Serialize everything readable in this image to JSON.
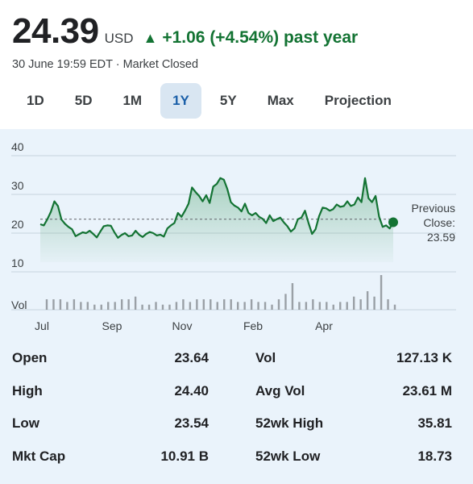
{
  "quote": {
    "price": "24.39",
    "currency": "USD",
    "change_arrow": "▲",
    "change_text": "+1.06 (+4.54%) past year",
    "timestamp": "30 June 19:59 EDT · Market Closed",
    "accent_color": "#137333"
  },
  "tabs": [
    {
      "label": "1D",
      "active": false
    },
    {
      "label": "5D",
      "active": false
    },
    {
      "label": "1M",
      "active": false
    },
    {
      "label": "1Y",
      "active": true
    },
    {
      "label": "5Y",
      "active": false
    },
    {
      "label": "Max",
      "active": false
    },
    {
      "label": "Projection",
      "active": false
    }
  ],
  "chart_data": {
    "type": "area",
    "y_ticks": [
      "40",
      "30",
      "20",
      "10"
    ],
    "ylim": [
      10,
      40
    ],
    "x_tick_labels": [
      "Jul",
      "Sep",
      "Nov",
      "Feb",
      "Apr"
    ],
    "volume_label": "Vol",
    "previous_close": {
      "label_line1": "Previous",
      "label_line2": "Close:",
      "value": "23.59",
      "value_num": 23.59
    },
    "series": [
      {
        "values": [
          22.3,
          22.0,
          23.6,
          25.5,
          28.2,
          27.0,
          23.5,
          22.4,
          21.6,
          21.0,
          19.2,
          19.7,
          20.2,
          20.0,
          20.6,
          19.8,
          18.9,
          20.4,
          21.8,
          22.0,
          21.9,
          20.2,
          18.8,
          19.5,
          20.0,
          19.2,
          19.4,
          20.6,
          19.6,
          19.0,
          19.8,
          20.3,
          20.0,
          19.4,
          19.6,
          19.1,
          21.2,
          22.0,
          22.6,
          25.2,
          24.2,
          25.8,
          27.6,
          31.8,
          30.6,
          29.6,
          28.2,
          29.8,
          27.8,
          32.0,
          32.7,
          34.2,
          33.8,
          31.4,
          28.0,
          27.1,
          26.6,
          25.6,
          27.6,
          25.2,
          24.6,
          25.2,
          24.2,
          23.7,
          22.6,
          24.6,
          23.1,
          23.6,
          24.0,
          22.8,
          21.8,
          20.4,
          21.2,
          23.6,
          24.0,
          25.8,
          22.6,
          19.8,
          21.0,
          24.4,
          26.6,
          26.4,
          25.8,
          26.2,
          27.4,
          26.8,
          27.0,
          28.2,
          27.0,
          27.4,
          29.2,
          28.0,
          34.2,
          29.0,
          28.0,
          29.6,
          24.2,
          21.6,
          22.0,
          21.2,
          22.8
        ]
      }
    ],
    "volume": [
      3,
      3,
      3,
      2,
      3,
      2,
      2,
      1,
      1,
      2,
      2,
      3,
      3,
      4,
      1,
      1,
      2,
      1,
      1,
      2,
      3,
      2,
      3,
      3,
      3,
      2,
      3,
      3,
      2,
      2,
      3,
      2,
      2,
      1,
      3,
      5,
      9,
      2,
      2,
      3,
      2,
      2,
      1,
      2,
      2,
      4,
      3,
      6,
      4,
      12,
      3,
      1
    ],
    "line_color": "#137333",
    "grid": true
  },
  "stats": [
    {
      "label": "Open",
      "value": "23.64",
      "label2": "Vol",
      "value2": "127.13 K"
    },
    {
      "label": "High",
      "value": "24.40",
      "label2": "Avg Vol",
      "value2": "23.61 M"
    },
    {
      "label": "Low",
      "value": "23.54",
      "label2": "52wk High",
      "value2": "35.81"
    },
    {
      "label": "Mkt Cap",
      "value": "10.91 B",
      "label2": "52wk Low",
      "value2": "18.73"
    }
  ]
}
